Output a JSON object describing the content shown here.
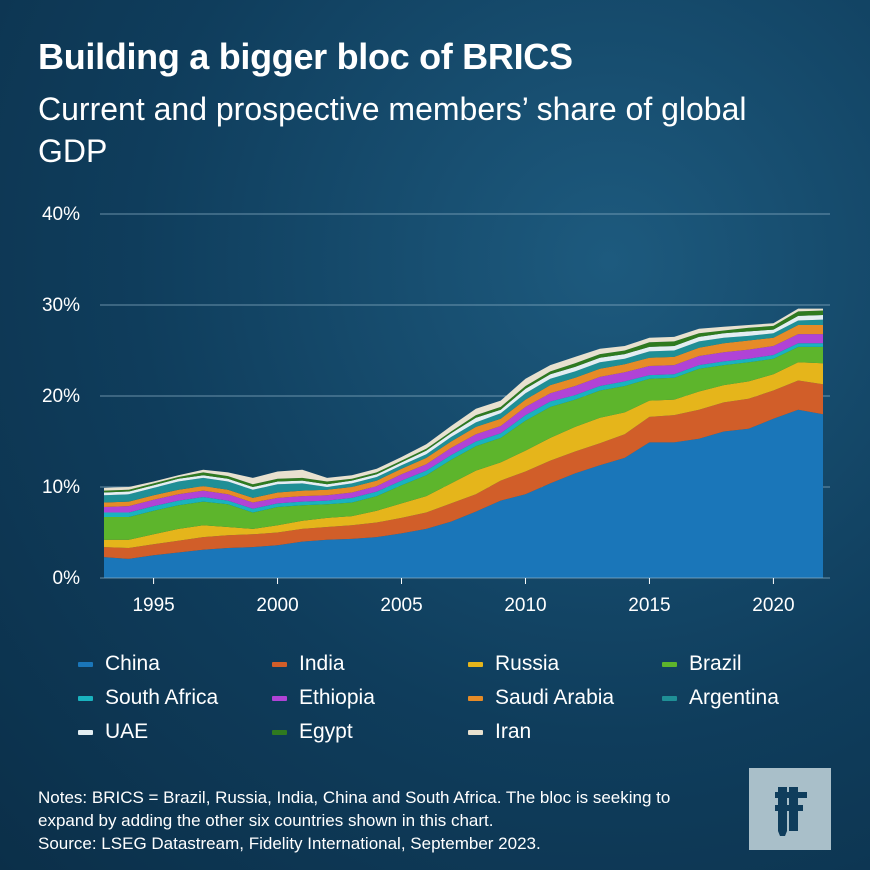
{
  "title": "Building a bigger bloc of BRICS",
  "subtitle": "Current and prospective members’ share of global GDP",
  "notes": "Notes: BRICS = Brazil, Russia, India, China and South Africa. The bloc is seeking to expand by adding the other six countries shown in this chart.",
  "source": "Source: LSEG Datastream, Fidelity International, September 2023.",
  "logo": {
    "icon": "fidelity-f-icon",
    "color": "#a9bfc9"
  },
  "chart_data": {
    "type": "area",
    "stacked": true,
    "title": "",
    "xlabel": "",
    "ylabel": "",
    "x": [
      1993,
      1994,
      1995,
      1996,
      1997,
      1998,
      1999,
      2000,
      2001,
      2002,
      2003,
      2004,
      2005,
      2006,
      2007,
      2008,
      2009,
      2010,
      2011,
      2012,
      2013,
      2014,
      2015,
      2016,
      2017,
      2018,
      2019,
      2020,
      2021,
      2022
    ],
    "xlim": [
      1993,
      2022
    ],
    "ylim": [
      0,
      40
    ],
    "y_ticks": [
      0,
      10,
      20,
      30,
      40
    ],
    "y_tick_labels": [
      "0%",
      "10%",
      "20%",
      "30%",
      "40%"
    ],
    "x_ticks": [
      1995,
      2000,
      2005,
      2010,
      2015,
      2020
    ],
    "x_tick_labels": [
      "1995",
      "2000",
      "2005",
      "2010",
      "2015",
      "2020"
    ],
    "grid": true,
    "legend_position": "bottom",
    "series": [
      {
        "name": "China",
        "color": "#1a76b9",
        "values": [
          2.3,
          2.1,
          2.5,
          2.8,
          3.1,
          3.3,
          3.4,
          3.6,
          4.0,
          4.2,
          4.3,
          4.5,
          4.9,
          5.4,
          6.2,
          7.3,
          8.5,
          9.2,
          10.4,
          11.5,
          12.4,
          13.2,
          14.9,
          14.9,
          15.3,
          16.1,
          16.4,
          17.5,
          18.5,
          18.0
        ]
      },
      {
        "name": "India",
        "color": "#d15e29",
        "values": [
          1.1,
          1.2,
          1.2,
          1.3,
          1.4,
          1.4,
          1.4,
          1.4,
          1.4,
          1.4,
          1.5,
          1.6,
          1.7,
          1.8,
          2.0,
          1.9,
          2.2,
          2.5,
          2.5,
          2.4,
          2.4,
          2.6,
          2.8,
          3.0,
          3.2,
          3.2,
          3.3,
          3.1,
          3.2,
          3.3
        ]
      },
      {
        "name": "Russia",
        "color": "#e5b51b",
        "values": [
          0.8,
          0.9,
          1.1,
          1.3,
          1.3,
          0.9,
          0.6,
          0.8,
          0.9,
          1.0,
          1.0,
          1.3,
          1.6,
          1.8,
          2.2,
          2.6,
          2.0,
          2.3,
          2.5,
          2.7,
          2.8,
          2.4,
          1.8,
          1.7,
          2.0,
          1.9,
          1.9,
          1.8,
          2.0,
          2.3
        ]
      },
      {
        "name": "Brazil",
        "color": "#5db52c",
        "values": [
          2.5,
          2.5,
          2.6,
          2.6,
          2.6,
          2.5,
          1.8,
          2.0,
          1.7,
          1.5,
          1.5,
          1.6,
          2.0,
          2.3,
          2.6,
          2.7,
          2.7,
          3.3,
          3.4,
          3.0,
          3.0,
          2.9,
          2.4,
          2.4,
          2.5,
          2.2,
          2.1,
          1.7,
          1.7,
          1.8
        ]
      },
      {
        "name": "South Africa",
        "color": "#19b3bf",
        "values": [
          0.5,
          0.5,
          0.5,
          0.5,
          0.5,
          0.4,
          0.4,
          0.4,
          0.4,
          0.4,
          0.5,
          0.5,
          0.5,
          0.5,
          0.5,
          0.5,
          0.5,
          0.6,
          0.6,
          0.5,
          0.5,
          0.5,
          0.4,
          0.4,
          0.4,
          0.4,
          0.4,
          0.4,
          0.4,
          0.4
        ]
      },
      {
        "name": "Ethiopia",
        "color": "#b043d6",
        "values": [
          0.6,
          0.7,
          0.7,
          0.7,
          0.7,
          0.7,
          0.7,
          0.6,
          0.6,
          0.6,
          0.6,
          0.6,
          0.7,
          0.7,
          0.8,
          0.8,
          0.8,
          0.9,
          0.9,
          1.0,
          1.0,
          1.0,
          1.0,
          1.0,
          1.0,
          1.0,
          1.0,
          1.0,
          1.0,
          1.0
        ]
      },
      {
        "name": "Saudi Arabia",
        "color": "#e68b27",
        "values": [
          0.5,
          0.5,
          0.5,
          0.5,
          0.5,
          0.5,
          0.5,
          0.6,
          0.6,
          0.6,
          0.6,
          0.6,
          0.6,
          0.7,
          0.7,
          0.8,
          0.8,
          0.8,
          0.9,
          0.9,
          0.9,
          0.9,
          0.9,
          0.9,
          0.9,
          1.0,
          1.0,
          0.9,
          1.0,
          1.0
        ]
      },
      {
        "name": "Argentina",
        "color": "#1f8f96",
        "values": [
          0.8,
          0.8,
          0.8,
          0.9,
          0.9,
          0.9,
          0.9,
          0.9,
          0.8,
          0.3,
          0.4,
          0.4,
          0.4,
          0.4,
          0.5,
          0.5,
          0.6,
          0.7,
          0.7,
          0.7,
          0.7,
          0.6,
          0.7,
          0.7,
          0.7,
          0.6,
          0.5,
          0.5,
          0.5,
          0.6
        ]
      },
      {
        "name": "UAE",
        "color": "#e3eef2",
        "values": [
          0.3,
          0.3,
          0.3,
          0.3,
          0.3,
          0.3,
          0.3,
          0.3,
          0.3,
          0.3,
          0.3,
          0.3,
          0.3,
          0.4,
          0.4,
          0.5,
          0.4,
          0.5,
          0.5,
          0.5,
          0.5,
          0.5,
          0.5,
          0.5,
          0.5,
          0.5,
          0.5,
          0.4,
          0.5,
          0.5
        ]
      },
      {
        "name": "Egypt",
        "color": "#2f7a1f",
        "values": [
          0.2,
          0.2,
          0.2,
          0.2,
          0.3,
          0.3,
          0.3,
          0.3,
          0.3,
          0.3,
          0.2,
          0.2,
          0.2,
          0.2,
          0.2,
          0.3,
          0.3,
          0.3,
          0.3,
          0.4,
          0.4,
          0.4,
          0.5,
          0.5,
          0.4,
          0.3,
          0.4,
          0.4,
          0.5,
          0.5
        ]
      },
      {
        "name": "Iran",
        "color": "#e8e1cf",
        "values": [
          0.3,
          0.3,
          0.2,
          0.2,
          0.3,
          0.4,
          0.7,
          0.8,
          0.9,
          0.4,
          0.4,
          0.4,
          0.4,
          0.5,
          0.6,
          0.7,
          0.7,
          0.8,
          0.7,
          0.7,
          0.6,
          0.5,
          0.5,
          0.5,
          0.5,
          0.4,
          0.3,
          0.3,
          0.3,
          0.2
        ]
      }
    ]
  }
}
